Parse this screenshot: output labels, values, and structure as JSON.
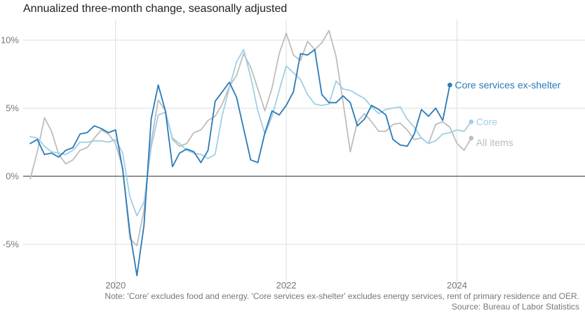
{
  "chart_data": {
    "type": "line",
    "title": "Annualized three-month change, seasonally adjusted",
    "ylim": [
      -8.5,
      11.5
    ],
    "y_ticks": [
      {
        "value": 10,
        "label": "10%"
      },
      {
        "value": 5,
        "label": "5%"
      },
      {
        "value": 0,
        "label": "0%"
      },
      {
        "value": -5,
        "label": "-5%"
      }
    ],
    "xlim": [
      2018.917,
      2025.5
    ],
    "x_ticks": [
      {
        "value": 2020,
        "label": "2020"
      },
      {
        "value": 2022,
        "label": "2022"
      },
      {
        "value": 2024,
        "label": "2024"
      }
    ],
    "x_start": 2019.0,
    "x_step_months": 1,
    "series": [
      {
        "name": "All items",
        "color": "#bdbdbd",
        "label": "All items",
        "values": [
          -0.2,
          1.8,
          4.3,
          3.3,
          1.6,
          0.9,
          1.2,
          1.9,
          2.1,
          2.8,
          3.4,
          3.1,
          2.4,
          0.6,
          -4.6,
          -5.1,
          -2.5,
          2.5,
          5.6,
          4.8,
          2.7,
          2.2,
          2.4,
          3.2,
          3.4,
          4.1,
          4.4,
          5.3,
          6.6,
          7.4,
          9.0,
          8.0,
          6.4,
          4.8,
          6.5,
          9.0,
          10.5,
          8.9,
          8.5,
          9.9,
          9.3,
          9.8,
          10.7,
          8.8,
          5.4,
          1.8,
          4.0,
          4.6,
          4.0,
          3.3,
          3.3,
          3.8,
          3.9,
          3.4,
          2.7,
          2.8,
          2.4,
          3.8,
          4.0,
          3.6,
          2.4,
          1.9,
          2.8
        ]
      },
      {
        "name": "Core",
        "color": "#9fcfe5",
        "label": "Core",
        "values": [
          2.9,
          2.8,
          2.2,
          1.8,
          1.7,
          1.6,
          1.9,
          2.5,
          2.5,
          2.6,
          2.6,
          2.5,
          2.7,
          1.7,
          -1.5,
          -2.9,
          -1.9,
          2.1,
          4.5,
          4.7,
          2.8,
          2.4,
          1.9,
          1.7,
          1.6,
          1.3,
          1.6,
          4.5,
          6.5,
          8.4,
          9.3,
          7.3,
          4.8,
          3.1,
          4.4,
          6.3,
          8.1,
          7.6,
          7.1,
          6.0,
          5.3,
          5.2,
          5.3,
          7.0,
          6.4,
          6.3,
          6.0,
          5.7,
          5.1,
          4.6,
          4.9,
          5.0,
          5.1,
          4.2,
          3.6,
          2.8,
          2.4,
          2.6,
          3.1,
          3.2,
          3.4,
          3.3,
          4.0
        ]
      },
      {
        "name": "Core services ex-shelter",
        "color": "#2a7ab8",
        "label": "Core services ex-shelter",
        "values": [
          2.4,
          2.7,
          1.6,
          1.7,
          1.4,
          1.9,
          2.1,
          3.1,
          3.2,
          3.7,
          3.5,
          3.2,
          3.4,
          0.5,
          -4.1,
          -7.3,
          -3.6,
          4.2,
          6.7,
          4.8,
          0.7,
          1.7,
          2.0,
          1.8,
          1.0,
          1.9,
          5.5,
          6.2,
          6.9,
          5.8,
          3.5,
          1.2,
          1.0,
          3.2,
          4.8,
          4.5,
          5.2,
          6.2,
          9.0,
          8.9,
          9.3,
          6.0,
          5.4,
          5.4,
          5.9,
          5.4,
          3.7,
          4.2,
          5.2,
          4.9,
          4.5,
          2.7,
          2.3,
          2.2,
          3.1,
          4.9,
          4.4,
          5.0,
          4.1,
          6.7
        ]
      }
    ],
    "note": "Note: 'Core' excludes food and energy. 'Core services ex-shelter' excludes energy services, rent of primary residence and OER.",
    "source": "Source: Bureau of Labor Statistics"
  }
}
